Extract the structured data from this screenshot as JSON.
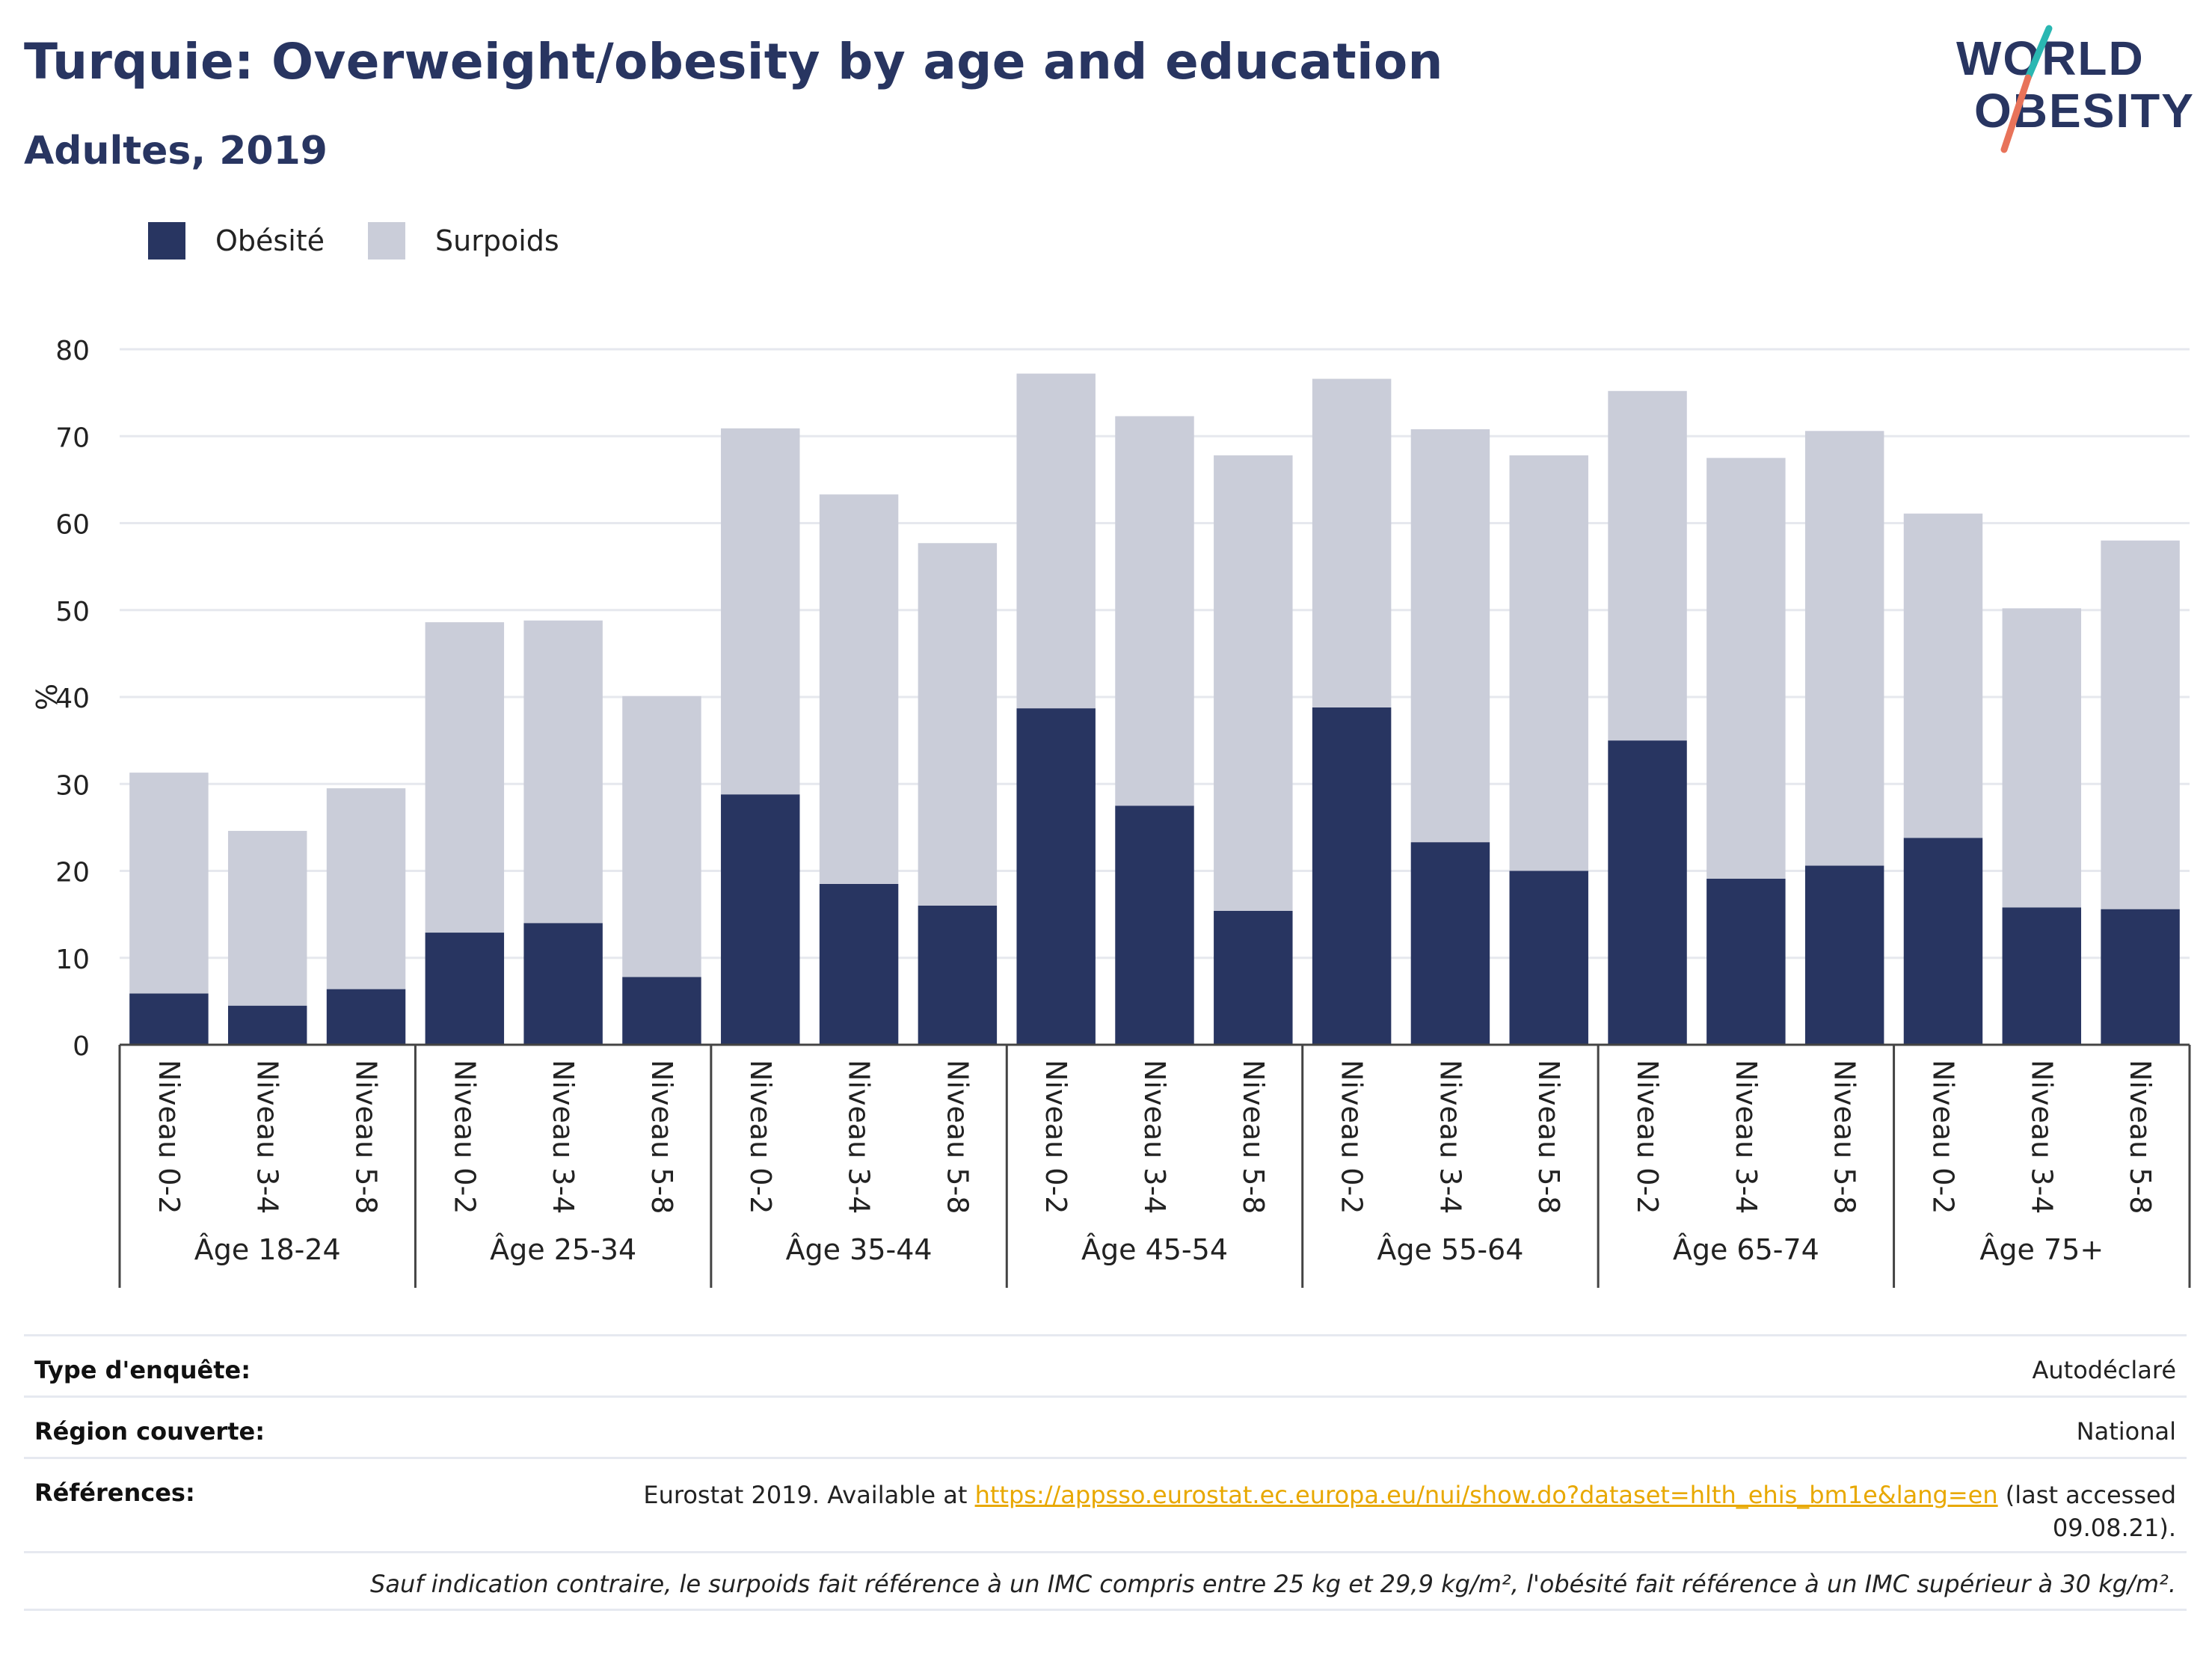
{
  "header": {
    "title": "Turquie: Overweight/obesity by age and education",
    "subtitle": "Adultes, 2019"
  },
  "logo": {
    "line1": "WORLD",
    "line2": "OBESITY"
  },
  "colors": {
    "obesity": "#283561",
    "overweight": "#cacdd9",
    "grid": "#e6e8ee",
    "axis": "#444444",
    "link": "#e8a800",
    "logo_teal": "#2ab7b2",
    "logo_coral": "#e8735a"
  },
  "chart_data": {
    "type": "bar",
    "stacked": true,
    "ylabel": "%",
    "ylim": [
      0,
      80
    ],
    "yticks": [
      0,
      10,
      20,
      30,
      40,
      50,
      60,
      70,
      80
    ],
    "grid": true,
    "legend_position": "top-left",
    "groups": [
      "Âge 18-24",
      "Âge 25-34",
      "Âge 35-44",
      "Âge 45-54",
      "Âge 55-64",
      "Âge 65-74",
      "Âge 75+"
    ],
    "subcategories": [
      "Niveau 0-2",
      "Niveau 3-4",
      "Niveau 5-8"
    ],
    "series": [
      {
        "name": "Obésité",
        "values": [
          [
            5.9,
            4.5,
            6.4
          ],
          [
            12.9,
            14.0,
            7.8
          ],
          [
            28.8,
            18.5,
            16.0
          ],
          [
            38.7,
            27.5,
            15.4
          ],
          [
            38.8,
            23.3,
            20.0
          ],
          [
            35.0,
            19.1,
            20.6
          ],
          [
            23.8,
            15.8,
            15.6
          ]
        ]
      },
      {
        "name": "Surpoids",
        "values": [
          [
            25.4,
            20.1,
            23.1
          ],
          [
            35.7,
            34.8,
            32.3
          ],
          [
            42.1,
            44.8,
            41.7
          ],
          [
            38.5,
            44.8,
            52.4
          ],
          [
            37.8,
            47.5,
            47.8
          ],
          [
            40.2,
            48.4,
            50.0
          ],
          [
            37.3,
            34.4,
            42.4
          ]
        ]
      }
    ]
  },
  "info": {
    "survey_type_label": "Type d'enquête:",
    "survey_type_value": "Autodéclaré",
    "region_label": "Région couverte:",
    "region_value": "National",
    "references_label": "Références:",
    "references_prefix": "Eurostat 2019. Available at ",
    "references_link": "https://appsso.eurostat.ec.europa.eu/nui/show.do?dataset=hlth_ehis_bm1e&lang=en",
    "references_suffix": " (last accessed 09.08.21).",
    "note": "Sauf indication contraire, le surpoids fait référence à un IMC compris entre 25 kg et 29,9 kg/m², l'obésité fait référence à un IMC supérieur à 30 kg/m²."
  }
}
